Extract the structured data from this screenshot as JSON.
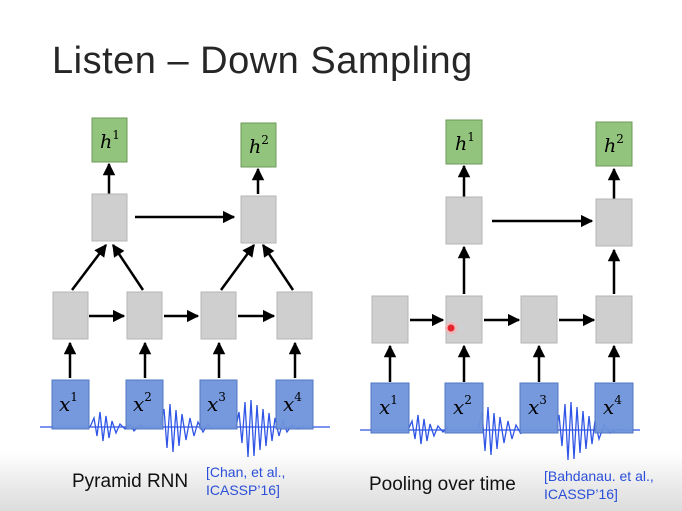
{
  "slide": {
    "title": "Listen – Down Sampling"
  },
  "pyramid": {
    "caption": "Pyramid RNN",
    "citation_line1": "[Chan, et al.,",
    "citation_line2": "ICASSP’16]",
    "outputs": [
      {
        "base": "h",
        "sup": "1"
      },
      {
        "base": "h",
        "sup": "2"
      }
    ],
    "inputs": [
      {
        "base": "x",
        "sup": "1"
      },
      {
        "base": "x",
        "sup": "2"
      },
      {
        "base": "x",
        "sup": "3"
      },
      {
        "base": "x",
        "sup": "4"
      }
    ]
  },
  "pooling": {
    "caption": "Pooling over time",
    "citation_line1": "[Bahdanau. et al.,",
    "citation_line2": "ICASSP’16]",
    "outputs": [
      {
        "base": "h",
        "sup": "1"
      },
      {
        "base": "h",
        "sup": "2"
      }
    ],
    "inputs": [
      {
        "base": "x",
        "sup": "1"
      },
      {
        "base": "x",
        "sup": "2"
      },
      {
        "base": "x",
        "sup": "3"
      },
      {
        "base": "x",
        "sup": "4"
      }
    ]
  },
  "colors": {
    "output_fill": "#93c47d",
    "output_stroke": "#6e9a5a",
    "hidden_fill": "#cfcfcf",
    "hidden_stroke": "#b5b5b5",
    "input_fill": "#6f94dc",
    "input_stroke": "#4a70bf",
    "waveform": "#2f55e6",
    "citation": "#2b4fd8",
    "pointer": "#e3262e"
  }
}
